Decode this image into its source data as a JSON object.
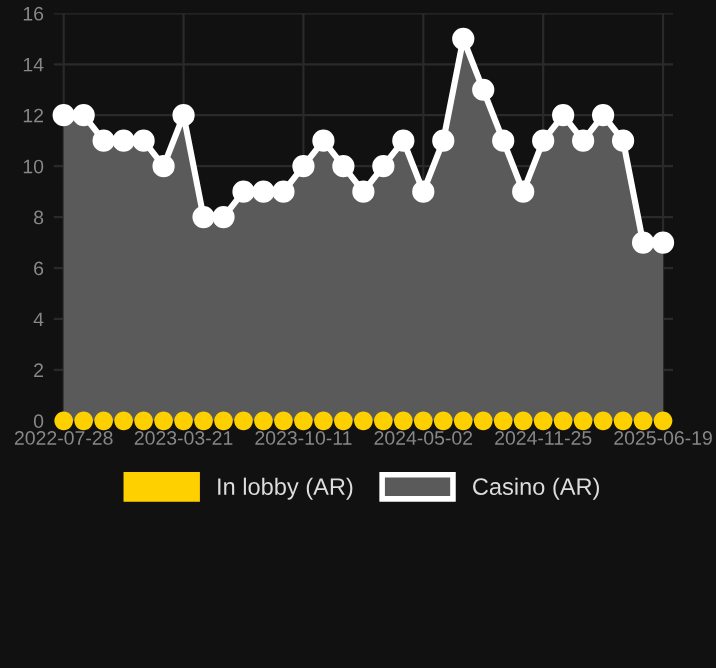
{
  "chart_data": {
    "type": "area",
    "categories": [
      "2022-07-28",
      null,
      null,
      null,
      null,
      null,
      "2023-03-21",
      null,
      null,
      null,
      null,
      null,
      "2023-10-11",
      null,
      null,
      null,
      null,
      null,
      "2024-05-02",
      null,
      null,
      null,
      null,
      null,
      "2024-11-25",
      null,
      null,
      null,
      null,
      null,
      "2025-06-19"
    ],
    "series": [
      {
        "name": "In lobby (AR)",
        "type": "scatter",
        "color": "#ffd000",
        "values": [
          0,
          0,
          0,
          0,
          0,
          0,
          0,
          0,
          0,
          0,
          0,
          0,
          0,
          0,
          0,
          0,
          0,
          0,
          0,
          0,
          0,
          0,
          0,
          0,
          0,
          0,
          0,
          0,
          0,
          0,
          0
        ]
      },
      {
        "name": "Casino (AR)",
        "color": "#ffffff",
        "values": [
          12,
          12,
          11,
          11,
          11,
          10,
          12,
          8,
          8,
          9,
          9,
          9,
          10,
          11,
          10,
          9,
          10,
          11,
          9,
          11,
          15,
          13,
          11,
          9,
          11,
          12,
          11,
          12,
          11,
          7,
          7
        ]
      }
    ],
    "ylim": [
      0,
      16
    ],
    "yticks": [
      0,
      2,
      4,
      6,
      8,
      10,
      12,
      14,
      16
    ],
    "grid": true,
    "legend": "bottom",
    "marker": "circle",
    "line_style": "solid"
  }
}
